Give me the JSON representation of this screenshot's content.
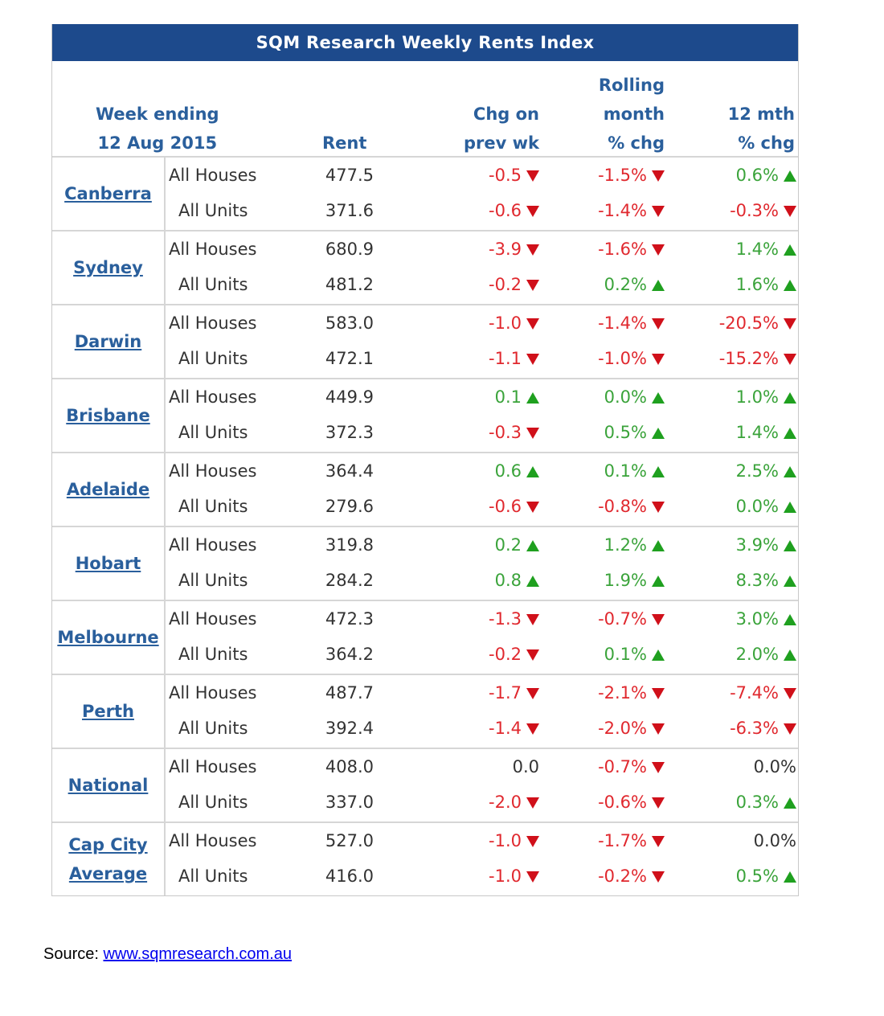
{
  "title": "SQM Research Weekly Rents Index",
  "header": {
    "week_ending_label": "Week ending",
    "week_ending_date": "12 Aug 2015",
    "rent": "Rent",
    "chg_line1": "Chg on",
    "chg_line2": "prev wk",
    "rolling_line1": "Rolling",
    "rolling_line2": "month",
    "rolling_line3": "% chg",
    "yr_line1": "12 mth",
    "yr_line2": "% chg"
  },
  "colors": {
    "header_bg": "#1d4a8c",
    "link": "#2a5f9c",
    "up": "#3aa33a",
    "down": "#e0282e"
  },
  "rows": [
    {
      "city": [
        "Canberra"
      ],
      "sub": [
        {
          "type": "All Houses",
          "rent": "477.5",
          "wk": "-0.5",
          "wk_dir": "down",
          "mth": "-1.5%",
          "mth_dir": "down",
          "yr": "0.6%",
          "yr_dir": "up"
        },
        {
          "type": "All Units",
          "rent": "371.6",
          "wk": "-0.6",
          "wk_dir": "down",
          "mth": "-1.4%",
          "mth_dir": "down",
          "yr": "-0.3%",
          "yr_dir": "down"
        }
      ]
    },
    {
      "city": [
        "Sydney"
      ],
      "sub": [
        {
          "type": "All Houses",
          "rent": "680.9",
          "wk": "-3.9",
          "wk_dir": "down",
          "mth": "-1.6%",
          "mth_dir": "down",
          "yr": "1.4%",
          "yr_dir": "up"
        },
        {
          "type": "All Units",
          "rent": "481.2",
          "wk": "-0.2",
          "wk_dir": "down",
          "mth": "0.2%",
          "mth_dir": "up",
          "yr": "1.6%",
          "yr_dir": "up"
        }
      ]
    },
    {
      "city": [
        "Darwin"
      ],
      "sub": [
        {
          "type": "All Houses",
          "rent": "583.0",
          "wk": "-1.0",
          "wk_dir": "down",
          "mth": "-1.4%",
          "mth_dir": "down",
          "yr": "-20.5%",
          "yr_dir": "down"
        },
        {
          "type": "All Units",
          "rent": "472.1",
          "wk": "-1.1",
          "wk_dir": "down",
          "mth": "-1.0%",
          "mth_dir": "down",
          "yr": "-15.2%",
          "yr_dir": "down"
        }
      ]
    },
    {
      "city": [
        "Brisbane"
      ],
      "sub": [
        {
          "type": "All Houses",
          "rent": "449.9",
          "wk": "0.1",
          "wk_dir": "up",
          "mth": "0.0%",
          "mth_dir": "up",
          "yr": "1.0%",
          "yr_dir": "up"
        },
        {
          "type": "All Units",
          "rent": "372.3",
          "wk": "-0.3",
          "wk_dir": "down",
          "mth": "0.5%",
          "mth_dir": "up",
          "yr": "1.4%",
          "yr_dir": "up"
        }
      ]
    },
    {
      "city": [
        "Adelaide"
      ],
      "sub": [
        {
          "type": "All Houses",
          "rent": "364.4",
          "wk": "0.6",
          "wk_dir": "up",
          "mth": "0.1%",
          "mth_dir": "up",
          "yr": "2.5%",
          "yr_dir": "up"
        },
        {
          "type": "All Units",
          "rent": "279.6",
          "wk": "-0.6",
          "wk_dir": "down",
          "mth": "-0.8%",
          "mth_dir": "down",
          "yr": "0.0%",
          "yr_dir": "up"
        }
      ]
    },
    {
      "city": [
        "Hobart"
      ],
      "sub": [
        {
          "type": "All Houses",
          "rent": "319.8",
          "wk": "0.2",
          "wk_dir": "up",
          "mth": "1.2%",
          "mth_dir": "up",
          "yr": "3.9%",
          "yr_dir": "up"
        },
        {
          "type": "All Units",
          "rent": "284.2",
          "wk": "0.8",
          "wk_dir": "up",
          "mth": "1.9%",
          "mth_dir": "up",
          "yr": "8.3%",
          "yr_dir": "up"
        }
      ]
    },
    {
      "city": [
        "Melbourne"
      ],
      "sub": [
        {
          "type": "All Houses",
          "rent": "472.3",
          "wk": "-1.3",
          "wk_dir": "down",
          "mth": "-0.7%",
          "mth_dir": "down",
          "yr": "3.0%",
          "yr_dir": "up"
        },
        {
          "type": "All Units",
          "rent": "364.2",
          "wk": "-0.2",
          "wk_dir": "down",
          "mth": "0.1%",
          "mth_dir": "up",
          "yr": "2.0%",
          "yr_dir": "up"
        }
      ]
    },
    {
      "city": [
        "Perth"
      ],
      "sub": [
        {
          "type": "All Houses",
          "rent": "487.7",
          "wk": "-1.7",
          "wk_dir": "down",
          "mth": "-2.1%",
          "mth_dir": "down",
          "yr": "-7.4%",
          "yr_dir": "down"
        },
        {
          "type": "All Units",
          "rent": "392.4",
          "wk": "-1.4",
          "wk_dir": "down",
          "mth": "-2.0%",
          "mth_dir": "down",
          "yr": "-6.3%",
          "yr_dir": "down"
        }
      ]
    },
    {
      "city": [
        "National"
      ],
      "sub": [
        {
          "type": "All Houses",
          "rent": "408.0",
          "wk": "0.0",
          "wk_dir": "none",
          "mth": "-0.7%",
          "mth_dir": "down",
          "yr": "0.0%",
          "yr_dir": "none"
        },
        {
          "type": "All Units",
          "rent": "337.0",
          "wk": "-2.0",
          "wk_dir": "down",
          "mth": "-0.6%",
          "mth_dir": "down",
          "yr": "0.3%",
          "yr_dir": "up"
        }
      ]
    },
    {
      "city": [
        "Cap City",
        "Average"
      ],
      "sub": [
        {
          "type": "All Houses",
          "rent": "527.0",
          "wk": "-1.0",
          "wk_dir": "down",
          "mth": "-1.7%",
          "mth_dir": "down",
          "yr": "0.0%",
          "yr_dir": "none"
        },
        {
          "type": "All Units",
          "rent": "416.0",
          "wk": "-1.0",
          "wk_dir": "down",
          "mth": "-0.2%",
          "mth_dir": "down",
          "yr": "0.5%",
          "yr_dir": "up"
        }
      ]
    }
  ],
  "source": {
    "label": "Source: ",
    "link_text": "www.sqmresearch.com.au"
  }
}
